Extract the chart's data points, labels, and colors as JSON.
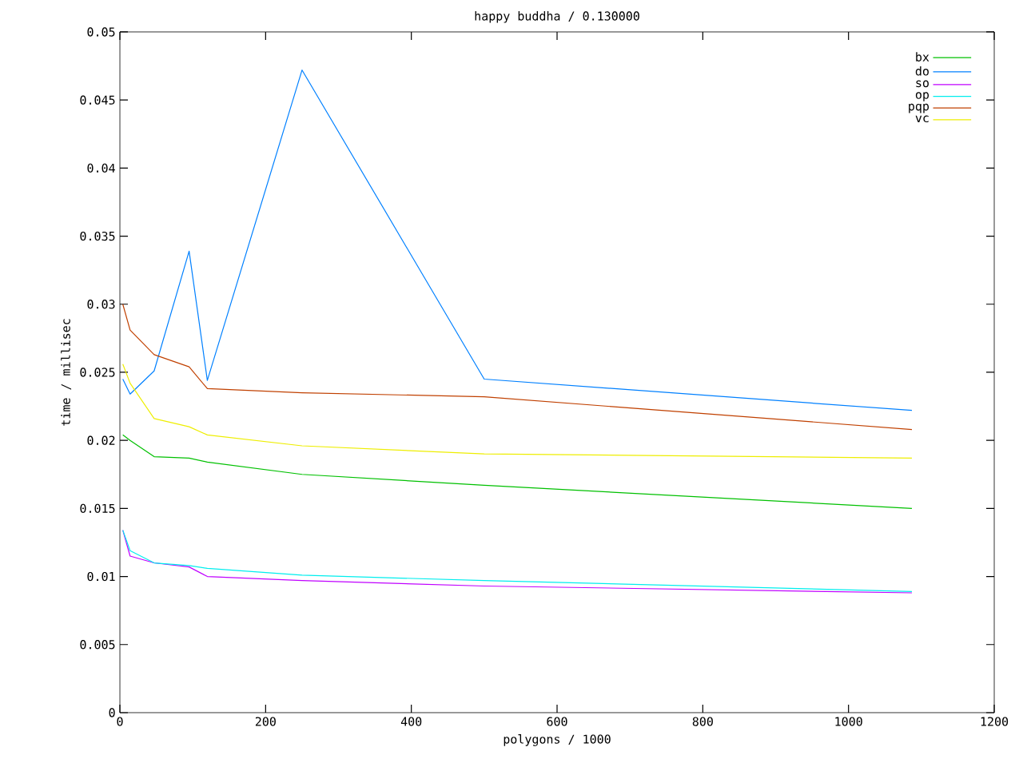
{
  "chart_data": {
    "type": "line",
    "title": "happy buddha / 0.130000",
    "xlabel": "polygons / 1000",
    "ylabel": "time / millisec",
    "xlim": [
      0,
      1200
    ],
    "xticks": [
      0,
      200,
      400,
      600,
      800,
      1000,
      1200
    ],
    "ylim": [
      0,
      0.05
    ],
    "yticks": [
      0,
      0.005,
      0.01,
      0.015,
      0.02,
      0.025,
      0.03,
      0.035,
      0.04,
      0.045,
      0.05
    ],
    "grid": false,
    "legend": "top right",
    "marker": "none",
    "line_style": "solid",
    "x": [
      4,
      14,
      47,
      95,
      120,
      250,
      500,
      1087
    ],
    "series": [
      {
        "name": "bx",
        "color": "#00c000",
        "values": [
          0.0204,
          0.02,
          0.0188,
          0.0187,
          0.0184,
          0.0175,
          0.0167,
          0.015
        ]
      },
      {
        "name": "do",
        "color": "#0080ff",
        "values": [
          0.0245,
          0.0234,
          0.0251,
          0.0339,
          0.0244,
          0.0472,
          0.0245,
          0.0222
        ]
      },
      {
        "name": "so",
        "color": "#c000ff",
        "values": [
          0.0134,
          0.0115,
          0.011,
          0.0107,
          0.01,
          0.0097,
          0.0093,
          0.0088
        ]
      },
      {
        "name": "op",
        "color": "#00eeee",
        "values": [
          0.0134,
          0.0119,
          0.011,
          0.0108,
          0.0106,
          0.0101,
          0.0097,
          0.0089
        ]
      },
      {
        "name": "pqp",
        "color": "#c04000",
        "values": [
          0.03,
          0.0281,
          0.0263,
          0.0254,
          0.0238,
          0.0235,
          0.0232,
          0.0208
        ]
      },
      {
        "name": "vc",
        "color": "#eeee00",
        "values": [
          0.0256,
          0.0242,
          0.0216,
          0.021,
          0.0204,
          0.0196,
          0.019,
          0.0187
        ]
      }
    ]
  }
}
